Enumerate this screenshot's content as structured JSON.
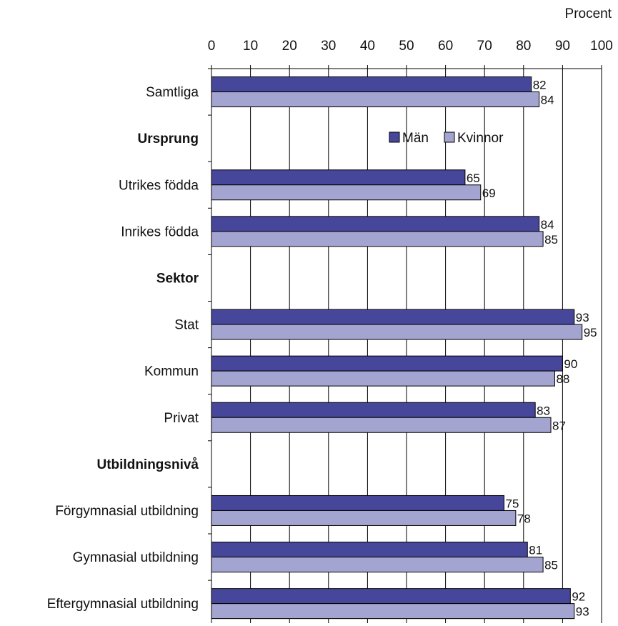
{
  "chart_data": {
    "type": "bar",
    "orientation": "horizontal",
    "unit_label": "Procent",
    "xlim": [
      0,
      100
    ],
    "x_ticks": [
      0,
      10,
      20,
      30,
      40,
      50,
      60,
      70,
      80,
      90,
      100
    ],
    "grid": true,
    "legend_position": "upper-right inside plot",
    "series": [
      {
        "name": "Män",
        "color": "#46469a"
      },
      {
        "name": "Kvinnor",
        "color": "#a4a4d0"
      }
    ],
    "rows": [
      {
        "label": "Samtliga",
        "type": "item",
        "values": [
          82,
          84
        ]
      },
      {
        "label": "Ursprung",
        "type": "header"
      },
      {
        "label": "Utrikes födda",
        "type": "item",
        "values": [
          65,
          69
        ]
      },
      {
        "label": "Inrikes födda",
        "type": "item",
        "values": [
          84,
          85
        ]
      },
      {
        "label": "Sektor",
        "type": "header"
      },
      {
        "label": "Stat",
        "type": "item",
        "values": [
          93,
          95
        ]
      },
      {
        "label": "Kommun",
        "type": "item",
        "values": [
          90,
          88
        ]
      },
      {
        "label": "Privat",
        "type": "item",
        "values": [
          83,
          87
        ]
      },
      {
        "label": "Utbildningsnivå",
        "type": "header"
      },
      {
        "label": "Förgymnasial utbildning",
        "type": "item",
        "values": [
          75,
          78
        ]
      },
      {
        "label": "Gymnasial utbildning",
        "type": "item",
        "values": [
          81,
          85
        ]
      },
      {
        "label": "Eftergymnasial utbildning",
        "type": "item",
        "values": [
          92,
          93
        ]
      }
    ]
  }
}
